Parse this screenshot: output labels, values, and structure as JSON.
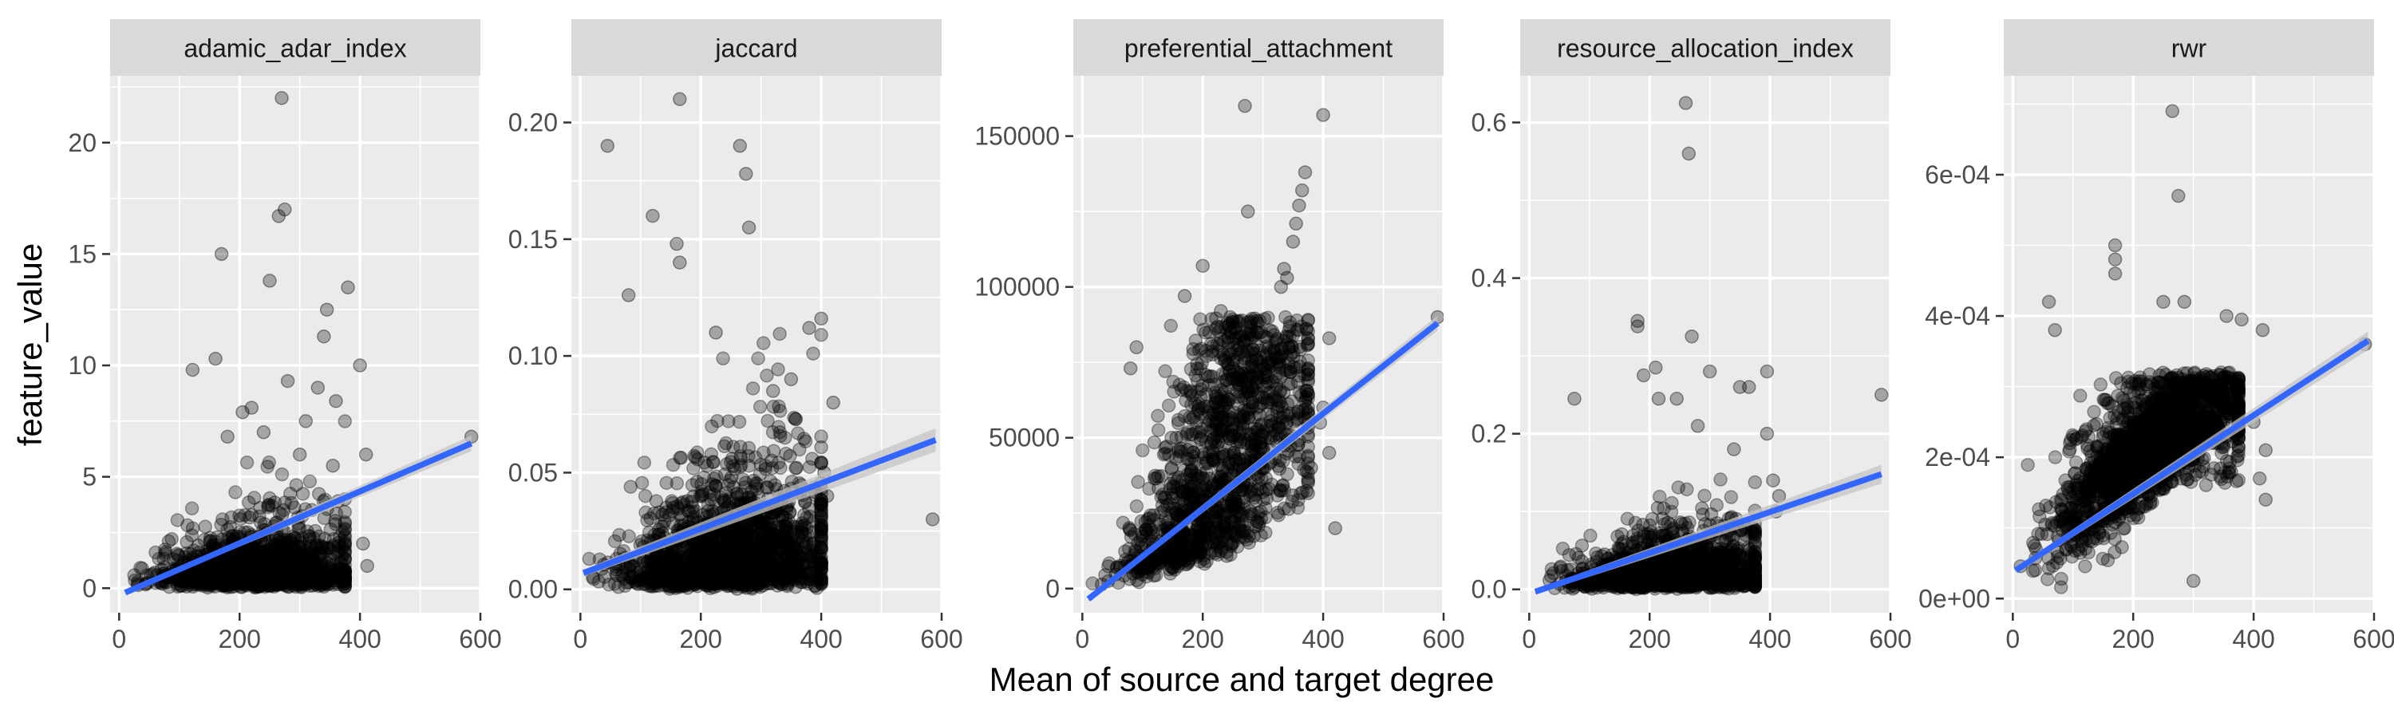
{
  "figure": {
    "xlabel": "Mean of source and target degree",
    "ylabel": "feature_value"
  },
  "colors": {
    "panel_bg": "#EBEBEB",
    "strip_bg": "#D9D9D9",
    "grid": "#FFFFFF",
    "point": "#000000",
    "fit_line": "#3366FF",
    "ci_band": "#C4C4C4",
    "text": "#1A1A1A",
    "tick_text": "#4D4D4D"
  },
  "chart_data": [
    {
      "type": "scatter",
      "title": "adamic_adar_index",
      "xlim": [
        -15,
        600
      ],
      "ylim": [
        -1.1,
        23
      ],
      "xticks": [
        0,
        200,
        400,
        600
      ],
      "xtick_labels": [
        "0",
        "200",
        "400",
        "600"
      ],
      "yticks": [
        0,
        5,
        10,
        15,
        20
      ],
      "ytick_labels": [
        "0",
        "5",
        "10",
        "15",
        "20"
      ],
      "fit": {
        "x": [
          10,
          585
        ],
        "y": [
          -0.2,
          6.5
        ],
        "ci": [
          0.05,
          0.35
        ]
      },
      "cloud": {
        "n": 1400,
        "x_mode": 150,
        "x_max": 300,
        "y_base": 0.3,
        "y_scale": 1.2,
        "y_max": 8
      },
      "outliers": [
        [
          270,
          22
        ],
        [
          275,
          17
        ],
        [
          265,
          16.7
        ],
        [
          170,
          15
        ],
        [
          250,
          13.8
        ],
        [
          380,
          13.5
        ],
        [
          345,
          12.5
        ],
        [
          340,
          11.3
        ],
        [
          160,
          10.3
        ],
        [
          122,
          9.8
        ],
        [
          400,
          10
        ],
        [
          360,
          8.4
        ],
        [
          330,
          9
        ],
        [
          280,
          9.3
        ],
        [
          410,
          6
        ],
        [
          300,
          6
        ],
        [
          412,
          1
        ],
        [
          405,
          2
        ],
        [
          585,
          6.8
        ],
        [
          310,
          7.5
        ],
        [
          220,
          8.1
        ],
        [
          205,
          7.9
        ],
        [
          240,
          7
        ],
        [
          355,
          5.5
        ],
        [
          180,
          6.8
        ]
      ]
    },
    {
      "type": "scatter",
      "title": "jaccard",
      "xlim": [
        -15,
        600
      ],
      "ylim": [
        -0.01,
        0.22
      ],
      "xticks": [
        0,
        200,
        400,
        600
      ],
      "xtick_labels": [
        "0",
        "200",
        "400",
        "600"
      ],
      "yticks": [
        0,
        0.05,
        0.1,
        0.15,
        0.2
      ],
      "ytick_labels": [
        "0.00",
        "0.05",
        "0.10",
        "0.15",
        "0.20"
      ],
      "fit": {
        "x": [
          5,
          590
        ],
        "y": [
          0.007,
          0.064
        ],
        "ci": [
          0.0015,
          0.005
        ]
      },
      "cloud": {
        "n": 1700,
        "x_mode": 140,
        "x_max": 320,
        "y_base": 0.004,
        "y_scale": 0.022,
        "y_max": 0.11
      },
      "outliers": [
        [
          165,
          0.21
        ],
        [
          45,
          0.19
        ],
        [
          265,
          0.19
        ],
        [
          275,
          0.178
        ],
        [
          120,
          0.16
        ],
        [
          160,
          0.148
        ],
        [
          280,
          0.155
        ],
        [
          165,
          0.14
        ],
        [
          80,
          0.126
        ],
        [
          400,
          0.116
        ],
        [
          380,
          0.112
        ],
        [
          420,
          0.08
        ],
        [
          585,
          0.03
        ],
        [
          405,
          0.05
        ],
        [
          410,
          0.04
        ],
        [
          350,
          0.09
        ],
        [
          320,
          0.085
        ],
        [
          225,
          0.11
        ]
      ]
    },
    {
      "type": "scatter",
      "title": "preferential_attachment",
      "xlim": [
        -15,
        600
      ],
      "ylim": [
        -8000,
        170000
      ],
      "xticks": [
        0,
        200,
        400,
        600
      ],
      "xtick_labels": [
        "0",
        "200",
        "400",
        "600"
      ],
      "yticks": [
        0,
        50000,
        100000,
        150000
      ],
      "ytick_labels": [
        "0",
        "50000",
        "100000",
        "150000"
      ],
      "fit": {
        "x": [
          10,
          590
        ],
        "y": [
          -3500,
          88000
        ],
        "ci": [
          800,
          2500
        ]
      },
      "cloud": {
        "n": 1300,
        "x_mode": 120,
        "x_max": 300,
        "y_mode": "quadratic",
        "y_coef": 0.9,
        "y_scale": 6000,
        "y_max": 90000
      },
      "outliers": [
        [
          270,
          160000
        ],
        [
          400,
          157000
        ],
        [
          370,
          138000
        ],
        [
          365,
          132000
        ],
        [
          360,
          127000
        ],
        [
          275,
          125000
        ],
        [
          355,
          121000
        ],
        [
          350,
          115000
        ],
        [
          200,
          107000
        ],
        [
          335,
          106000
        ],
        [
          330,
          100000
        ],
        [
          340,
          103000
        ],
        [
          590,
          90000
        ],
        [
          410,
          83000
        ],
        [
          400,
          60000
        ],
        [
          395,
          55000
        ],
        [
          420,
          20000
        ],
        [
          410,
          45000
        ],
        [
          380,
          40000
        ],
        [
          300,
          40000
        ],
        [
          150,
          30000
        ],
        [
          170,
          97000
        ],
        [
          230,
          92000
        ],
        [
          255,
          83000
        ],
        [
          90,
          80000
        ],
        [
          80,
          73000
        ]
      ]
    },
    {
      "type": "scatter",
      "title": "resource_allocation_index",
      "xlim": [
        -15,
        600
      ],
      "ylim": [
        -0.03,
        0.66
      ],
      "xticks": [
        0,
        200,
        400,
        600
      ],
      "xtick_labels": [
        "0",
        "200",
        "400",
        "600"
      ],
      "yticks": [
        0,
        0.2,
        0.4,
        0.6
      ],
      "ytick_labels": [
        "0.0",
        "0.2",
        "0.4",
        "0.6"
      ],
      "fit": {
        "x": [
          10,
          585
        ],
        "y": [
          -0.003,
          0.148
        ],
        "ci": [
          0.003,
          0.012
        ]
      },
      "cloud": {
        "n": 1400,
        "x_mode": 150,
        "x_max": 300,
        "y_base": 0.008,
        "y_scale": 0.03,
        "y_max": 0.15
      },
      "outliers": [
        [
          260,
          0.625
        ],
        [
          265,
          0.56
        ],
        [
          180,
          0.345
        ],
        [
          180,
          0.338
        ],
        [
          270,
          0.325
        ],
        [
          210,
          0.285
        ],
        [
          300,
          0.28
        ],
        [
          395,
          0.28
        ],
        [
          190,
          0.275
        ],
        [
          75,
          0.245
        ],
        [
          350,
          0.26
        ],
        [
          365,
          0.26
        ],
        [
          215,
          0.245
        ],
        [
          245,
          0.245
        ],
        [
          585,
          0.25
        ],
        [
          280,
          0.21
        ],
        [
          395,
          0.2
        ],
        [
          340,
          0.18
        ],
        [
          415,
          0.12
        ],
        [
          405,
          0.14
        ],
        [
          410,
          0.1
        ],
        [
          345,
          0.05
        ]
      ]
    },
    {
      "type": "scatter",
      "title": "rwr",
      "xlim": [
        -15,
        600
      ],
      "ylim": [
        -2e-05,
        0.00074
      ],
      "xticks": [
        0,
        200,
        400,
        600
      ],
      "xtick_labels": [
        "0",
        "200",
        "400",
        "600"
      ],
      "yticks": [
        0,
        0.0002,
        0.0004,
        0.0006
      ],
      "ytick_labels": [
        "0e+00",
        "2e-04",
        "4e-04",
        "6e-04"
      ],
      "fit": {
        "x": [
          5,
          590
        ],
        "y": [
          4e-05,
          0.000365
        ],
        "ci": [
          4e-06,
          1.3e-05
        ]
      },
      "cloud": {
        "n": 1700,
        "x_mode": 140,
        "x_max": 300,
        "y_mode": "linear",
        "y_base": 3e-05,
        "y_coef": 7e-07,
        "y_scale": 7e-05,
        "y_max": 0.00032
      },
      "outliers": [
        [
          265,
          0.00069
        ],
        [
          275,
          0.00057
        ],
        [
          170,
          0.0005
        ],
        [
          170,
          0.00048
        ],
        [
          170,
          0.00046
        ],
        [
          60,
          0.00042
        ],
        [
          70,
          0.00038
        ],
        [
          250,
          0.00042
        ],
        [
          285,
          0.00042
        ],
        [
          355,
          0.0004
        ],
        [
          380,
          0.000395
        ],
        [
          415,
          0.00038
        ],
        [
          585,
          0.00036
        ],
        [
          420,
          0.00021
        ],
        [
          410,
          0.00017
        ],
        [
          420,
          0.00014
        ],
        [
          300,
          2.5e-05
        ],
        [
          400,
          0.00025
        ],
        [
          370,
          0.0003
        ],
        [
          330,
          0.00029
        ]
      ]
    }
  ]
}
